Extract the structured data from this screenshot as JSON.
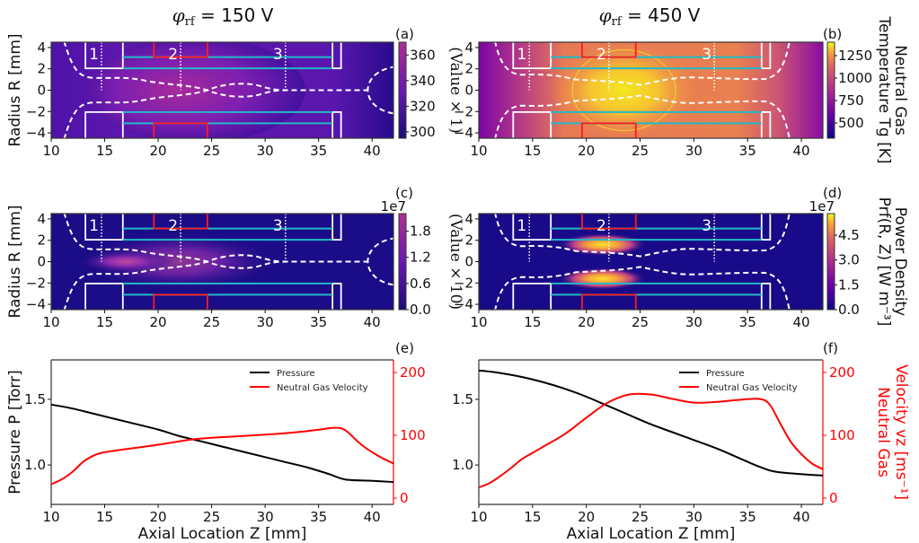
{
  "figure": {
    "titles": [
      {
        "prefix": "φ",
        "sub": "rf",
        "suffix": " = 150 V"
      },
      {
        "prefix": "φ",
        "sub": "rf",
        "suffix": " = 450 V"
      }
    ],
    "panel_labels": [
      "(a)",
      "(b)",
      "(c)",
      "(d)",
      "(e)",
      "(f)"
    ]
  },
  "chart_data": [
    {
      "id": "a",
      "type": "heatmap",
      "title": "φrf = 150 V",
      "xlabel": "",
      "ylabel": "Radius R [mm]",
      "xlim": [
        10,
        42
      ],
      "ylim": [
        -4.5,
        4.5
      ],
      "xticks": [
        10,
        15,
        20,
        25,
        30,
        35,
        40
      ],
      "yticks": [
        -4,
        -2,
        0,
        2,
        4
      ],
      "colormap": "plasma-dark",
      "colorbar": {
        "label": "(Value × 1)",
        "ticks": [
          300,
          320,
          340,
          360
        ],
        "range": [
          295,
          370
        ],
        "multiplier": ""
      },
      "peak": {
        "z": 23.5,
        "r": 0,
        "value": 365
      },
      "region_labels": [
        {
          "text": "1",
          "z": 14.7
        },
        {
          "text": "2",
          "z": 22.1
        },
        {
          "text": "3",
          "z": 31.9
        }
      ]
    },
    {
      "id": "b",
      "type": "heatmap",
      "title": "φrf = 450 V",
      "xlabel": "",
      "ylabel": "",
      "xlim": [
        10,
        42
      ],
      "ylim": [
        -4.5,
        4.5
      ],
      "xticks": [
        10,
        15,
        20,
        25,
        30,
        35,
        40
      ],
      "yticks": [
        -4,
        -2,
        0,
        2,
        4
      ],
      "colormap": "plasma",
      "colorbar": {
        "label": "Neutral Gas Temperature T_g [K]",
        "label_lines": [
          "Neutral Gas",
          "Temperature Tg [K]"
        ],
        "ticks": [
          500,
          750,
          1000,
          1250
        ],
        "range": [
          330,
          1400
        ],
        "multiplier": ""
      },
      "peak": {
        "z": 23.5,
        "r": 0,
        "value": 1380
      },
      "region_labels": [
        {
          "text": "1",
          "z": 14.7
        },
        {
          "text": "2",
          "z": 22.1
        },
        {
          "text": "3",
          "z": 31.9
        }
      ]
    },
    {
      "id": "c",
      "type": "heatmap",
      "title": "",
      "xlabel": "",
      "ylabel": "Radius R [mm]",
      "xlim": [
        10,
        42
      ],
      "ylim": [
        -4.5,
        4.5
      ],
      "xticks": [
        10,
        15,
        20,
        25,
        30,
        35,
        40
      ],
      "yticks": [
        -4,
        -2,
        0,
        2,
        4
      ],
      "colormap": "plasma-dark",
      "colorbar": {
        "label": "(Value × 10)",
        "ticks": [
          0.0,
          0.6,
          1.2,
          1.8
        ],
        "tick_labels": [
          "0.0",
          "0.6",
          "1.2",
          "1.8"
        ],
        "range": [
          0,
          2.2
        ],
        "multiplier": "1e7"
      },
      "peak": {
        "z": 17,
        "r": 0,
        "value": 2.1
      },
      "region_labels": [
        {
          "text": "1",
          "z": 14.7
        },
        {
          "text": "2",
          "z": 22.1
        },
        {
          "text": "3",
          "z": 31.9
        }
      ]
    },
    {
      "id": "d",
      "type": "heatmap",
      "title": "",
      "xlabel": "",
      "ylabel": "",
      "xlim": [
        10,
        42
      ],
      "ylim": [
        -4.5,
        4.5
      ],
      "xticks": [
        10,
        15,
        20,
        25,
        30,
        35,
        40
      ],
      "yticks": [
        -4,
        -2,
        0,
        2,
        4
      ],
      "colormap": "plasma",
      "colorbar": {
        "label": "Power Density P_rf(R, Z) [W m^-3]",
        "label_lines": [
          "Power Density",
          "Prf(R, Z) [W m⁻³]"
        ],
        "ticks": [
          0.0,
          1.5,
          3.0,
          4.5
        ],
        "tick_labels": [
          "0.0",
          "1.5",
          "3.0",
          "4.5"
        ],
        "range": [
          0,
          5.8
        ],
        "multiplier": "1e7"
      },
      "peak": {
        "z": 21.5,
        "r": 1.6,
        "value": 5.7
      },
      "region_labels": [
        {
          "text": "1",
          "z": 14.7
        },
        {
          "text": "2",
          "z": 22.1
        },
        {
          "text": "3",
          "z": 31.9
        }
      ]
    },
    {
      "id": "e",
      "type": "line",
      "title": "",
      "xlabel": "Axial Location Z [mm]",
      "ylabel": "Pressure P [Torr]",
      "y2label": "",
      "xlim": [
        10,
        42
      ],
      "ylim": [
        0.7,
        1.8
      ],
      "y2lim": [
        -10,
        220
      ],
      "xticks": [
        10,
        15,
        20,
        25,
        30,
        35,
        40
      ],
      "yticks": [
        1.0,
        1.5
      ],
      "ytick_labels": [
        "1.0",
        "1.5"
      ],
      "y2ticks": [
        0,
        100,
        200
      ],
      "legend": {
        "position": "top-right",
        "entries": [
          "Pressure",
          "Neutral Gas Velocity"
        ]
      },
      "series": [
        {
          "name": "Pressure",
          "axis": "left",
          "color": "#000000",
          "x": [
            10,
            12,
            14,
            16,
            18,
            20,
            22,
            24,
            26,
            28,
            30,
            32,
            34,
            36,
            37.5,
            40,
            42
          ],
          "y": [
            1.46,
            1.43,
            1.39,
            1.35,
            1.31,
            1.27,
            1.22,
            1.18,
            1.14,
            1.1,
            1.06,
            1.02,
            0.98,
            0.93,
            0.89,
            0.88,
            0.87
          ]
        },
        {
          "name": "Neutral Gas Velocity",
          "axis": "right",
          "color": "#ff0000",
          "x": [
            10,
            11,
            12,
            13,
            14,
            15,
            17,
            20,
            23,
            25,
            30,
            33,
            35,
            36.5,
            37.5,
            39,
            40.5,
            42
          ],
          "y": [
            22,
            30,
            42,
            58,
            68,
            73,
            78,
            85,
            93,
            96,
            101,
            105,
            109,
            112,
            108,
            85,
            68,
            55
          ]
        }
      ]
    },
    {
      "id": "f",
      "type": "line",
      "title": "",
      "xlabel": "Axial Location Z [mm]",
      "ylabel": "",
      "y2label": "Neutral Gas Velocity v_z [ms^-1]",
      "y2label_lines": [
        "Neutral Gas",
        "Velocity vz [ms⁻¹]"
      ],
      "xlim": [
        10,
        42
      ],
      "ylim": [
        0.7,
        1.8
      ],
      "y2lim": [
        -10,
        220
      ],
      "xticks": [
        10,
        15,
        20,
        25,
        30,
        35,
        40
      ],
      "yticks": [
        1.0,
        1.5
      ],
      "ytick_labels": [
        "1.0",
        "1.5"
      ],
      "y2ticks": [
        0,
        100,
        200
      ],
      "legend": {
        "position": "top-right",
        "entries": [
          "Pressure",
          "Neutral Gas Velocity"
        ]
      },
      "series": [
        {
          "name": "Pressure",
          "axis": "left",
          "color": "#000000",
          "x": [
            10,
            12,
            14,
            16,
            18,
            20,
            22,
            24,
            26,
            28,
            30,
            32,
            34,
            36,
            37.5,
            40,
            42
          ],
          "y": [
            1.72,
            1.7,
            1.67,
            1.63,
            1.58,
            1.52,
            1.45,
            1.38,
            1.31,
            1.25,
            1.19,
            1.13,
            1.06,
            0.99,
            0.95,
            0.93,
            0.92
          ]
        },
        {
          "name": "Neutral Gas Velocity",
          "axis": "right",
          "color": "#ff0000",
          "x": [
            10,
            11,
            12,
            13,
            14,
            15,
            16,
            18,
            20,
            22,
            24,
            26,
            28,
            30,
            32,
            34,
            36,
            37,
            38,
            39,
            40,
            41,
            42
          ],
          "y": [
            17,
            24,
            35,
            48,
            62,
            72,
            82,
            102,
            128,
            152,
            165,
            165,
            158,
            152,
            153,
            156,
            158,
            150,
            120,
            90,
            70,
            55,
            46
          ]
        }
      ]
    }
  ]
}
